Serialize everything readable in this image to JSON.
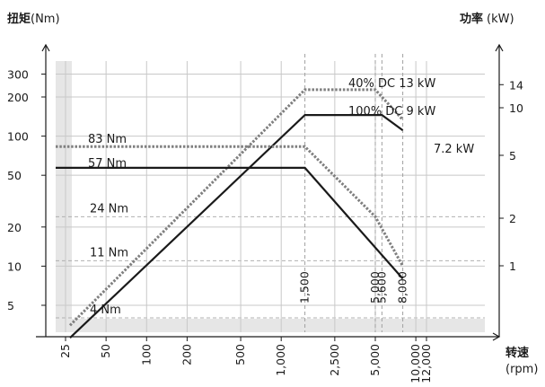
{
  "chart_data": {
    "type": "line",
    "y_left": {
      "title_main": "扭矩",
      "title_unit": "(Nm)",
      "scale": "log",
      "ticks": [
        5,
        10,
        20,
        50,
        100,
        200,
        300
      ],
      "tick_labels": [
        "5",
        "10",
        "20",
        "50",
        "100",
        "200",
        "300"
      ]
    },
    "y_right": {
      "title_main": "功率",
      "title_unit": "(kW)",
      "scale": "log",
      "ticks": [
        1,
        2,
        5,
        10,
        14
      ],
      "tick_labels": [
        "1",
        "2",
        "5",
        "10",
        "14"
      ]
    },
    "x": {
      "title_main": "转速",
      "title_unit": "(rpm)",
      "scale": "log",
      "ticks": [
        25,
        50,
        100,
        200,
        500,
        1000,
        2500,
        5000,
        10000,
        12000
      ],
      "tick_labels": [
        "25",
        "50",
        "100",
        "200",
        "500",
        "1,000",
        "2,500",
        "5,000",
        "10,000",
        "12,000"
      ]
    },
    "vertical_markers": [
      {
        "value": 1500,
        "label": "1,500"
      },
      {
        "value": 5000,
        "label": "5,000"
      },
      {
        "value": 5600,
        "label": "5,600"
      },
      {
        "value": 8000,
        "label": "8,000"
      }
    ],
    "horizontal_markers": [
      {
        "value": 4,
        "label": "4 Nm"
      },
      {
        "value": 11,
        "label": "11 Nm"
      },
      {
        "value": 24,
        "label": "24 Nm"
      }
    ],
    "series": [
      {
        "name": "40% DC 13 kW",
        "axis": "right",
        "style": "dotted",
        "color": "#7f7f7f",
        "x": [
          27,
          1500,
          5000,
          8000
        ],
        "y": [
          0.42,
          13,
          13,
          8.4
        ]
      },
      {
        "name": "100% DC 9 kW",
        "axis": "right",
        "style": "solid",
        "color": "#1a1a1a",
        "x": [
          27,
          1500,
          5600,
          8000
        ],
        "y": [
          0.35,
          9,
          9,
          7.2
        ]
      },
      {
        "name": "83 Nm",
        "axis": "left",
        "style": "dotted",
        "color": "#7f7f7f",
        "x": [
          20,
          1500,
          5000,
          8000
        ],
        "y": [
          83,
          83,
          24,
          10
        ]
      },
      {
        "name": "57 Nm",
        "axis": "left",
        "style": "solid",
        "color": "#1a1a1a",
        "x": [
          20,
          1500,
          8000
        ],
        "y": [
          57,
          57,
          8
        ]
      }
    ],
    "annotations": [
      {
        "text": "40% DC 13 kW"
      },
      {
        "text": "100% DC 9 kW"
      },
      {
        "text": "7.2 kW"
      },
      {
        "text": "83 Nm"
      },
      {
        "text": "57 Nm"
      }
    ],
    "grid": true
  }
}
